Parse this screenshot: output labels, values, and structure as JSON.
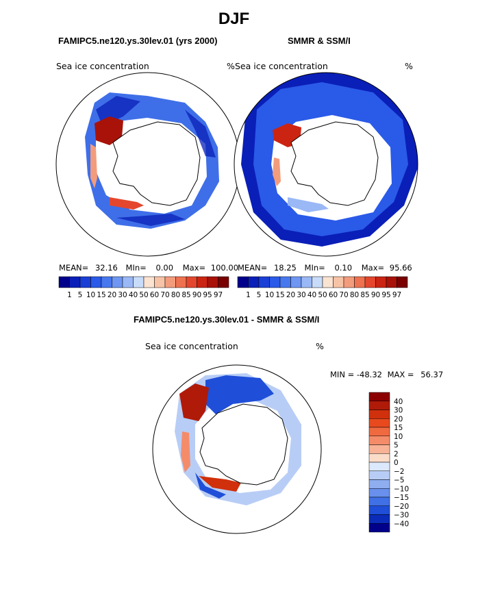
{
  "page": {
    "season": "DJF",
    "units": "%"
  },
  "panels": [
    {
      "model_title": "FAMIPC5.ne120.ys.30lev.01 (yrs 2000)",
      "variable": "Sea ice concentration",
      "units": "%",
      "stats": {
        "mean_label": "MEAN=",
        "mean": "32.16",
        "min_label": "MIn=",
        "min": "0.00",
        "max_label": "Max=",
        "max": "100.00"
      }
    },
    {
      "model_title": "SMMR & SSM/I",
      "variable": "Sea ice concentration",
      "units": "%",
      "stats": {
        "mean_label": "MEAN=",
        "mean": "18.25",
        "min_label": "MIn=",
        "min": "0.10",
        "max_label": "Max=",
        "max": "95.66"
      }
    }
  ],
  "diff_panel": {
    "title": "FAMIPC5.ne120.ys.30lev.01 - SMMR & SSM/I",
    "variable": "Sea ice concentration",
    "units": "%",
    "min_label": "MIN =",
    "min": "-48.32",
    "max_label": "MAX =",
    "max": "56.37"
  },
  "chart_data": [
    {
      "type": "heatmap",
      "projection": "south-polar-stereographic",
      "title": "FAMIPC5.ne120.ys.30lev.01 (yrs 2000)",
      "subtitle": "Sea ice concentration (%)",
      "stats": {
        "mean": 32.16,
        "min": 0.0,
        "max": 100.0
      },
      "colorbar": {
        "orientation": "horizontal",
        "tick_labels": [
          "1",
          "5",
          "10",
          "15",
          "20",
          "30",
          "40",
          "50",
          "60",
          "70",
          "80",
          "85",
          "90",
          "95",
          "97"
        ],
        "levels": [
          1,
          5,
          10,
          15,
          20,
          30,
          40,
          50,
          60,
          70,
          80,
          85,
          90,
          95,
          97
        ],
        "colors": [
          "#00008b",
          "#0a1fb8",
          "#1a3fd6",
          "#2a5ae8",
          "#4878ee",
          "#6e96f2",
          "#9ab8f6",
          "#c8dcfa",
          "#fbe3d2",
          "#f7c3a6",
          "#f39c7c",
          "#ee7250",
          "#e4472e",
          "#cc2412",
          "#a81208",
          "#7a0000"
        ]
      }
    },
    {
      "type": "heatmap",
      "projection": "south-polar-stereographic",
      "title": "SMMR & SSM/I",
      "subtitle": "Sea ice concentration (%)",
      "stats": {
        "mean": 18.25,
        "min": 0.1,
        "max": 95.66
      },
      "colorbar": {
        "orientation": "horizontal",
        "tick_labels": [
          "1",
          "5",
          "10",
          "15",
          "20",
          "30",
          "40",
          "50",
          "60",
          "70",
          "80",
          "85",
          "90",
          "95",
          "97"
        ],
        "levels": [
          1,
          5,
          10,
          15,
          20,
          30,
          40,
          50,
          60,
          70,
          80,
          85,
          90,
          95,
          97
        ],
        "colors": [
          "#00008b",
          "#0a1fb8",
          "#1a3fd6",
          "#2a5ae8",
          "#4878ee",
          "#6e96f2",
          "#9ab8f6",
          "#c8dcfa",
          "#fbe3d2",
          "#f7c3a6",
          "#f39c7c",
          "#ee7250",
          "#e4472e",
          "#cc2412",
          "#a81208",
          "#7a0000"
        ]
      }
    },
    {
      "type": "heatmap",
      "projection": "south-polar-stereographic",
      "title": "FAMIPC5.ne120.ys.30lev.01 - SMMR & SSM/I",
      "subtitle": "Sea ice concentration (%)",
      "stats": {
        "min": -48.32,
        "max": 56.37
      },
      "colorbar": {
        "orientation": "vertical",
        "tick_labels": [
          "40",
          "30",
          "20",
          "15",
          "10",
          "5",
          "2",
          "0",
          "−2",
          "−5",
          "−10",
          "−15",
          "−20",
          "−30",
          "−40"
        ],
        "levels": [
          40,
          30,
          20,
          15,
          10,
          5,
          2,
          0,
          -2,
          -5,
          -10,
          -15,
          -20,
          -30,
          -40
        ],
        "colors": [
          "#8b0000",
          "#b01a08",
          "#d0300c",
          "#e84a1e",
          "#f06a40",
          "#f48c6a",
          "#f8b396",
          "#fbdcc8",
          "#dce8fb",
          "#b8cdf6",
          "#8eaef0",
          "#6890ec",
          "#4070e6",
          "#1f4fd8",
          "#0a2cb8",
          "#00008b"
        ]
      }
    }
  ]
}
